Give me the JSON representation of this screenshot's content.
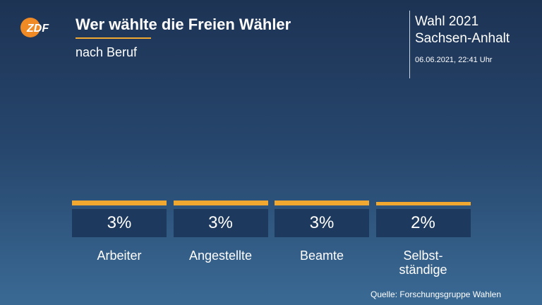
{
  "logo": "ZDF",
  "header": {
    "election": "Wahl 2021",
    "region": "Sachsen-Anhalt",
    "date": "06.06.2021, 22:41 Uhr"
  },
  "chart_data": {
    "type": "bar",
    "title": "Wer wählte die Freien Wähler",
    "subtitle": "nach Beruf",
    "categories": [
      "Arbeiter",
      "Angestellte",
      "Beamte",
      "Selbst-\nständige"
    ],
    "values": [
      3,
      3,
      3,
      2
    ],
    "value_labels": [
      "3%",
      "3%",
      "3%",
      "2%"
    ],
    "color": "#f0a830"
  },
  "footer": {
    "source": "Quelle: Forschungsgruppe Wahlen"
  }
}
